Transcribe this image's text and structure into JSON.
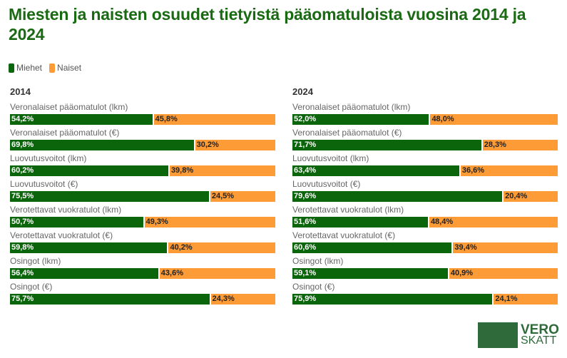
{
  "title": "Miesten ja naisten osuudet tietyistä pääomatuloista vuosina 2014 ja 2024",
  "logo": {
    "line1": "VERO",
    "line2": "SKATT"
  },
  "chart_data": [
    {
      "type": "bar",
      "stacked": true,
      "orientation": "horizontal",
      "title": "2014",
      "unit": "%",
      "xlim": [
        0,
        100
      ],
      "legend": {
        "placement": "top-left",
        "entries": [
          "Miehet",
          "Naiset"
        ]
      },
      "colors": {
        "Miehet": "#0b650b",
        "Naiset": "#fd9b36"
      },
      "categories": [
        "Veronalaiset pääomatulot (lkm)",
        "Veronalaiset pääomatulot (€)",
        "Luovutusvoitot (lkm)",
        "Luovutusvoitot (€)",
        "Verotettavat vuokratulot (lkm)",
        "Verotettavat vuokratulot (€)",
        "Osingot (lkm)",
        "Osingot (€)"
      ],
      "series": [
        {
          "name": "Miehet",
          "values": [
            54.2,
            69.8,
            60.2,
            75.5,
            50.7,
            59.8,
            56.4,
            75.7
          ]
        },
        {
          "name": "Naiset",
          "values": [
            45.8,
            30.2,
            39.8,
            24.5,
            49.3,
            40.2,
            43.6,
            24.3
          ]
        }
      ]
    },
    {
      "type": "bar",
      "stacked": true,
      "orientation": "horizontal",
      "title": "2024",
      "unit": "%",
      "xlim": [
        0,
        100
      ],
      "legend": {
        "placement": "top-left",
        "entries": [
          "Miehet",
          "Naiset"
        ]
      },
      "colors": {
        "Miehet": "#0b650b",
        "Naiset": "#fd9b36"
      },
      "categories": [
        "Veronalaiset pääomatulot (lkm)",
        "Veronalaiset pääomatulot (€)",
        "Luovutusvoitot (lkm)",
        "Luovutusvoitot (€)",
        "Verotettavat vuokratulot (lkm)",
        "Verotettavat vuokratulot (€)",
        "Osingot (lkm)",
        "Osingot (€)"
      ],
      "series": [
        {
          "name": "Miehet",
          "values": [
            52.0,
            71.7,
            63.4,
            79.6,
            51.6,
            60.6,
            59.1,
            75.9
          ]
        },
        {
          "name": "Naiset",
          "values": [
            48.0,
            28.3,
            36.6,
            20.4,
            48.4,
            39.4,
            40.9,
            24.1
          ]
        }
      ]
    }
  ]
}
